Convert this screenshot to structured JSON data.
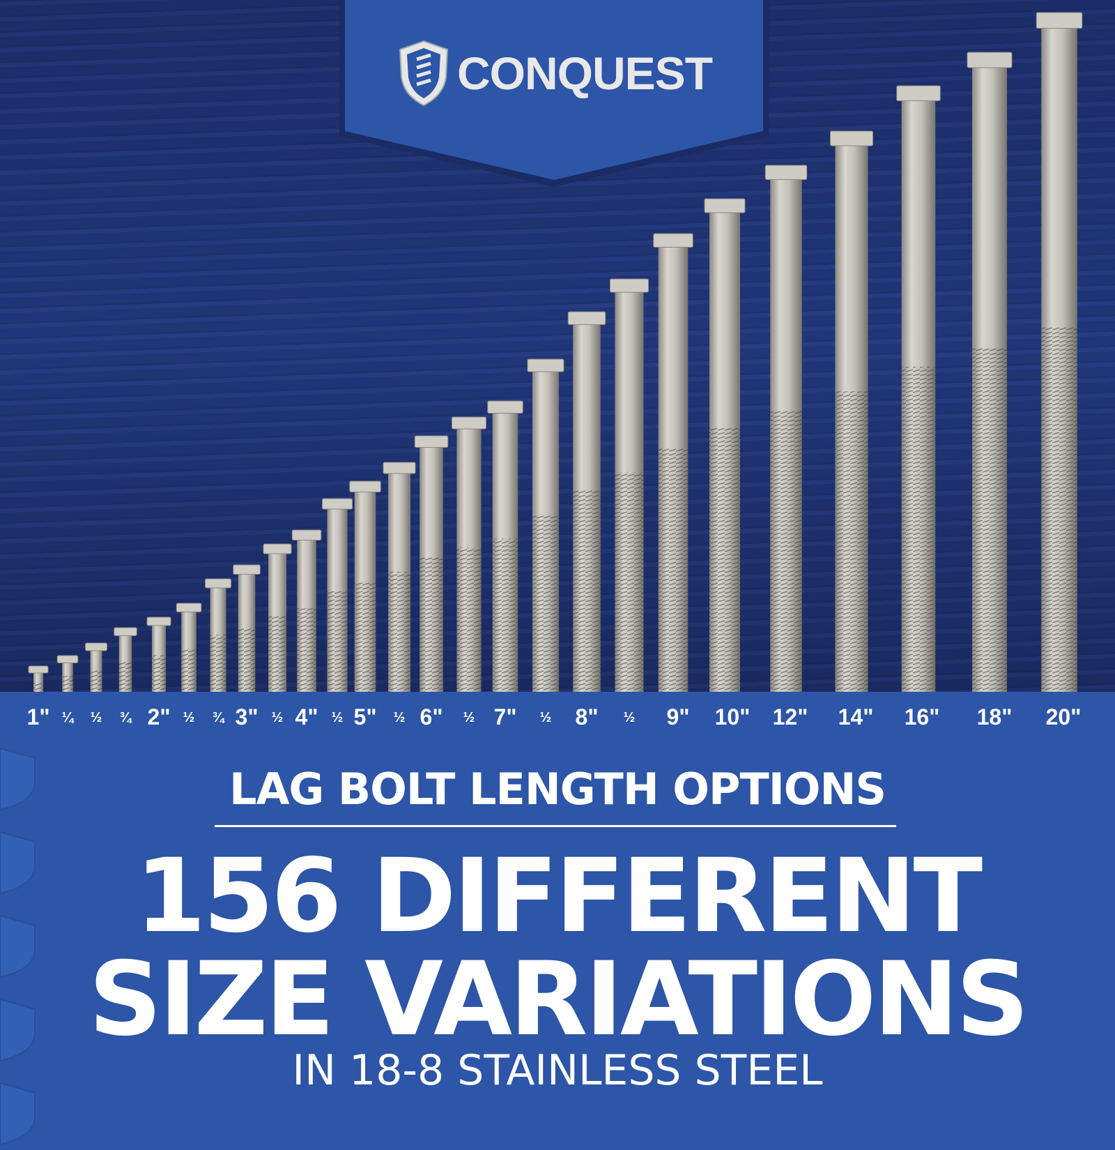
{
  "brand": {
    "name": "CONQUEST",
    "logo_icon": "shield-screw-icon"
  },
  "colors": {
    "primary_blue": "#2d55a8",
    "wood_blue": "#1f3377",
    "steel": "#c8c5bd",
    "text": "#ffffff"
  },
  "length_labels": [
    {
      "text": "1\"",
      "major": true
    },
    {
      "text": "¼",
      "major": false
    },
    {
      "text": "½",
      "major": false
    },
    {
      "text": "¾",
      "major": false
    },
    {
      "text": "2\"",
      "major": true
    },
    {
      "text": "½",
      "major": false
    },
    {
      "text": "¾",
      "major": false
    },
    {
      "text": "3\"",
      "major": true
    },
    {
      "text": "½",
      "major": false
    },
    {
      "text": "4\"",
      "major": true
    },
    {
      "text": "½",
      "major": false
    },
    {
      "text": "5\"",
      "major": true
    },
    {
      "text": "½",
      "major": false
    },
    {
      "text": "6\"",
      "major": true
    },
    {
      "text": "½",
      "major": false
    },
    {
      "text": "7\"",
      "major": true
    },
    {
      "text": "½",
      "major": false
    },
    {
      "text": "8\"",
      "major": true
    },
    {
      "text": "½",
      "major": false
    },
    {
      "text": "9\"",
      "major": true
    },
    {
      "text": "10\"",
      "major": true
    },
    {
      "text": "12\"",
      "major": true
    },
    {
      "text": "14\"",
      "major": true
    },
    {
      "text": "16\"",
      "major": true
    },
    {
      "text": "18\"",
      "major": true
    },
    {
      "text": "20\"",
      "major": true
    }
  ],
  "headline": {
    "subtitle": "LAG BOLT LENGTH OPTIONS",
    "line1": "156 DIFFERENT",
    "line2": "SIZE VARIATIONS",
    "tagline": "IN 18-8 STAINLESS STEEL"
  }
}
